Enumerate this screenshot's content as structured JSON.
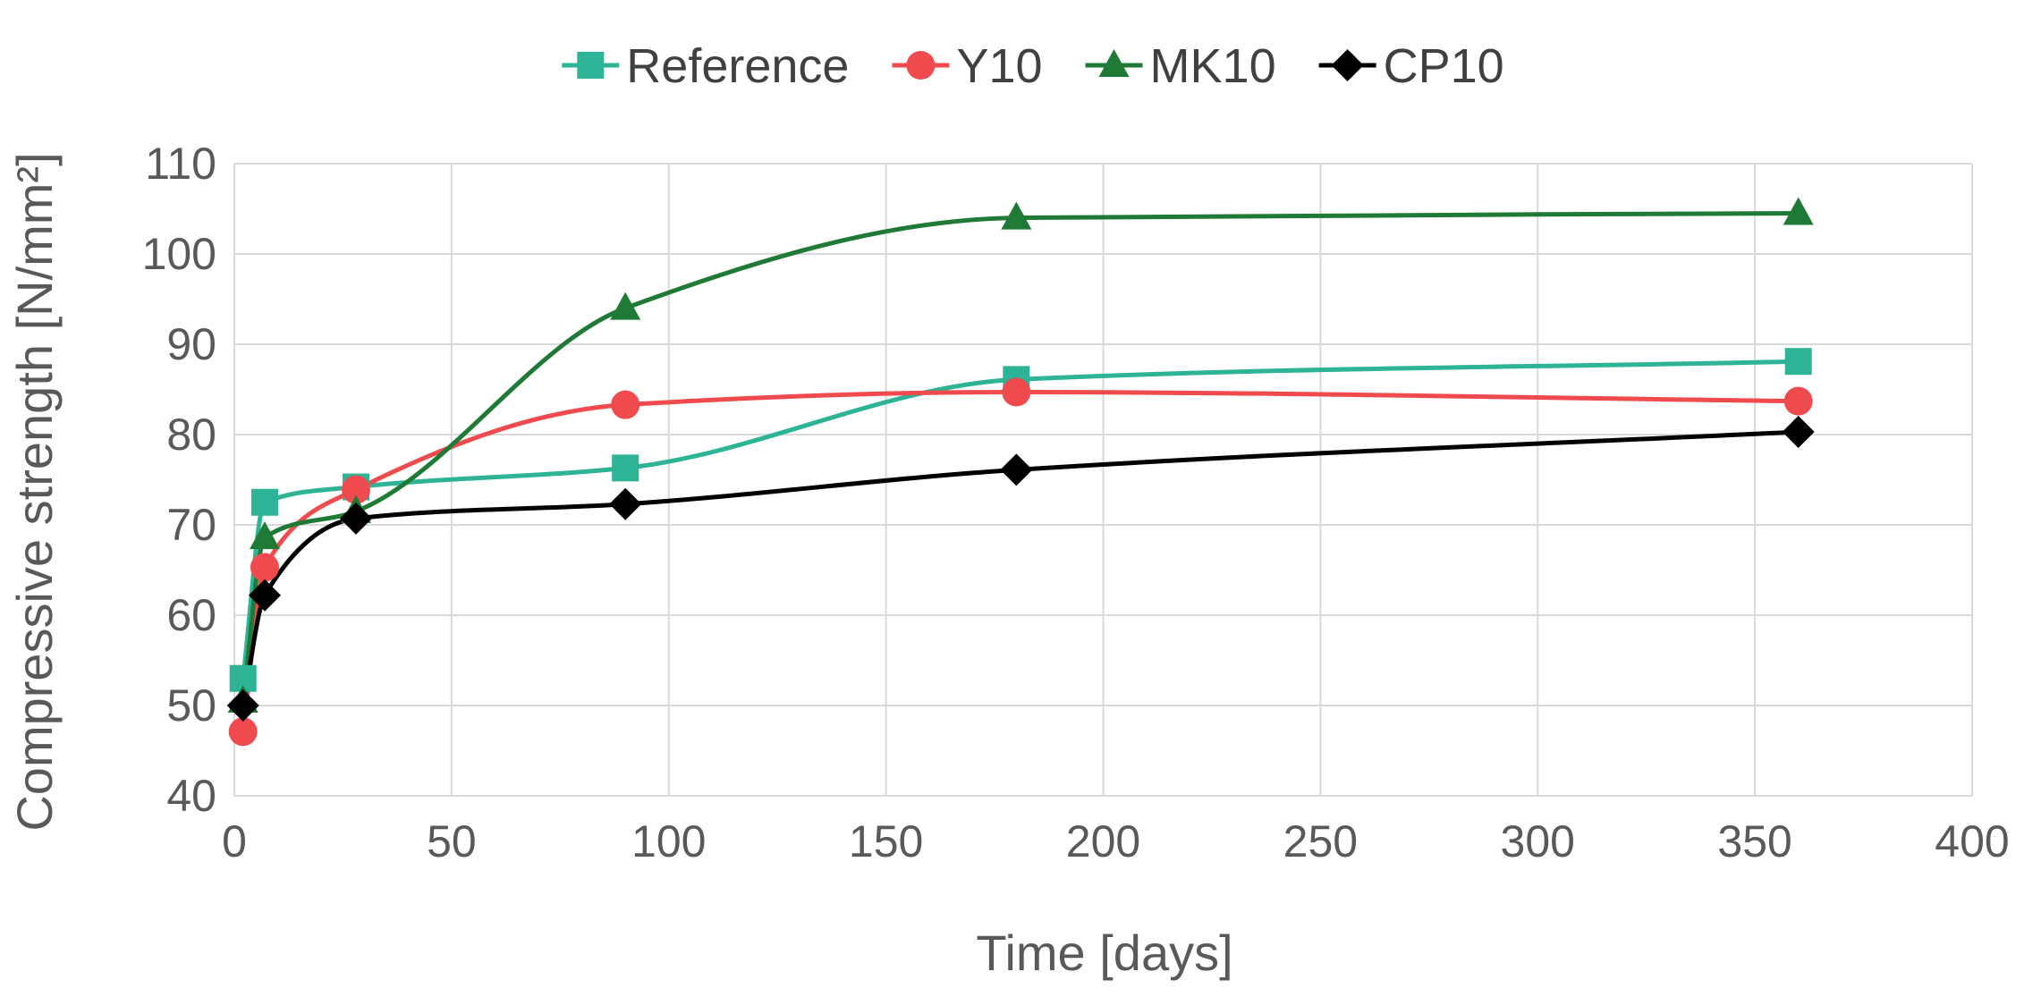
{
  "chart_data": {
    "type": "line",
    "title": "",
    "xlabel": "Time [days]",
    "ylabel": "Compressive strength [N/mm²]",
    "xlim": [
      0,
      400
    ],
    "ylim": [
      40,
      110
    ],
    "x_ticks": [
      0,
      50,
      100,
      150,
      200,
      250,
      300,
      350,
      400
    ],
    "y_ticks": [
      40,
      50,
      60,
      70,
      80,
      90,
      100,
      110
    ],
    "grid": true,
    "legend_position": "top",
    "smooth": true,
    "series": [
      {
        "name": "Reference",
        "color": "#2db395",
        "marker": "square",
        "x": [
          2,
          7,
          28,
          90,
          180,
          360
        ],
        "y": [
          53,
          72.5,
          74.2,
          76.3,
          86.1,
          88.1
        ]
      },
      {
        "name": "Y10",
        "color": "#ef4b4e",
        "marker": "circle",
        "x": [
          2,
          7,
          28,
          90,
          180,
          360
        ],
        "y": [
          47.1,
          65.3,
          73.9,
          83.3,
          84.7,
          83.7
        ]
      },
      {
        "name": "MK10",
        "color": "#1f7a35",
        "marker": "triangle",
        "x": [
          2,
          7,
          28,
          90,
          180,
          360
        ],
        "y": [
          50.5,
          68.6,
          71.5,
          94,
          104,
          104.5
        ]
      },
      {
        "name": "CP10",
        "color": "#000000",
        "marker": "diamond",
        "x": [
          2,
          7,
          28,
          90,
          180,
          360
        ],
        "y": [
          50,
          62.2,
          70.7,
          72.3,
          76.1,
          80.3
        ]
      }
    ]
  }
}
